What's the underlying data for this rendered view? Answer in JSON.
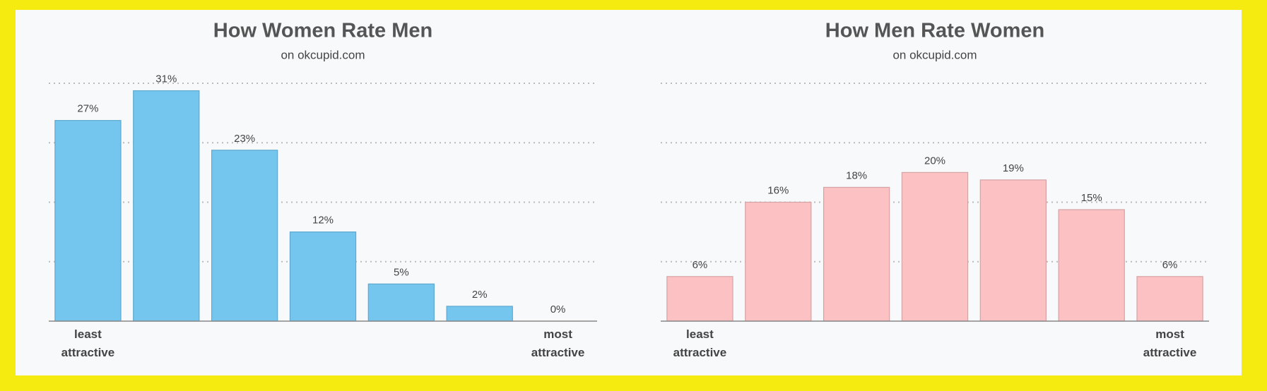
{
  "chart_data": [
    {
      "type": "bar",
      "title": "How Women Rate Men",
      "subtitle": "on okcupid.com",
      "categories": [
        "least attractive",
        null,
        null,
        null,
        null,
        null,
        "most attractive"
      ],
      "values": [
        27,
        31,
        23,
        12,
        5,
        2,
        0
      ],
      "value_labels": [
        "27%",
        "31%",
        "23%",
        "12%",
        "5%",
        "2%",
        "0%"
      ],
      "color": "#74c6ef",
      "ylim": [
        0,
        32
      ],
      "yticks": [
        8,
        16,
        24,
        32
      ],
      "grid": true
    },
    {
      "type": "bar",
      "title": "How Men Rate Women",
      "subtitle": "on okcupid.com",
      "categories": [
        "least attractive",
        null,
        null,
        null,
        null,
        null,
        "most attractive"
      ],
      "values": [
        6,
        16,
        18,
        20,
        19,
        15,
        6
      ],
      "value_labels": [
        "6%",
        "16%",
        "18%",
        "20%",
        "19%",
        "15%",
        "6%"
      ],
      "color": "#fbc1c3",
      "ylim": [
        0,
        32
      ],
      "yticks": [
        8,
        16,
        24,
        32
      ],
      "grid": true
    }
  ]
}
